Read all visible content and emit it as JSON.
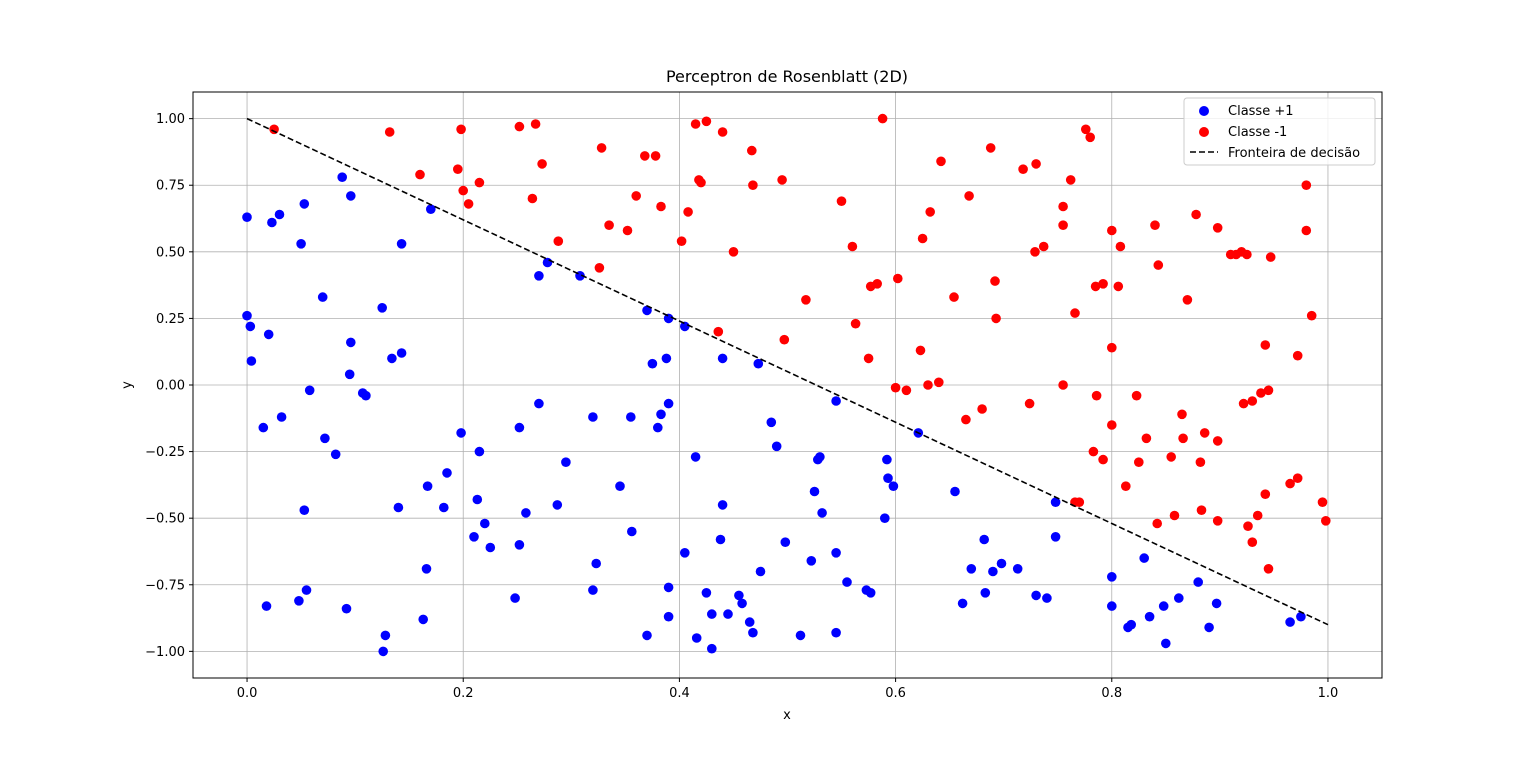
{
  "chart_data": {
    "type": "scatter",
    "title": "Perceptron de Rosenblatt (2D)",
    "xlabel": "x",
    "ylabel": "y",
    "xlim": [
      -0.05,
      1.05
    ],
    "ylim": [
      -1.1,
      1.1
    ],
    "xticks": [
      0.0,
      0.2,
      0.4,
      0.6,
      0.8,
      1.0
    ],
    "xtick_labels": [
      "0.0",
      "0.2",
      "0.4",
      "0.6",
      "0.8",
      "1.0"
    ],
    "yticks": [
      -1.0,
      -0.75,
      -0.5,
      -0.25,
      0.0,
      0.25,
      0.5,
      0.75,
      1.0
    ],
    "ytick_labels": [
      "−1.00",
      "−0.75",
      "−0.50",
      "−0.25",
      "0.00",
      "0.25",
      "0.50",
      "0.75",
      "1.00"
    ],
    "grid": true,
    "legend_position": "top-right",
    "series": [
      {
        "name": "Classe +1",
        "color": "#0000ff",
        "points": [
          [
            0.0,
            0.63
          ],
          [
            0.0,
            0.26
          ],
          [
            0.003,
            0.22
          ],
          [
            0.004,
            0.09
          ],
          [
            0.015,
            -0.16
          ],
          [
            0.018,
            -0.83
          ],
          [
            0.02,
            0.19
          ],
          [
            0.023,
            0.61
          ],
          [
            0.03,
            0.64
          ],
          [
            0.032,
            -0.12
          ],
          [
            0.048,
            -0.81
          ],
          [
            0.05,
            0.53
          ],
          [
            0.053,
            0.68
          ],
          [
            0.053,
            -0.47
          ],
          [
            0.055,
            -0.77
          ],
          [
            0.058,
            -0.02
          ],
          [
            0.07,
            0.33
          ],
          [
            0.072,
            -0.2
          ],
          [
            0.082,
            -0.26
          ],
          [
            0.088,
            0.78
          ],
          [
            0.092,
            -0.84
          ],
          [
            0.095,
            0.04
          ],
          [
            0.096,
            0.71
          ],
          [
            0.096,
            0.16
          ],
          [
            0.107,
            -0.03
          ],
          [
            0.11,
            -0.04
          ],
          [
            0.125,
            0.29
          ],
          [
            0.126,
            -1.0
          ],
          [
            0.128,
            -0.94
          ],
          [
            0.134,
            0.1
          ],
          [
            0.14,
            -0.46
          ],
          [
            0.143,
            0.12
          ],
          [
            0.143,
            0.53
          ],
          [
            0.163,
            -0.88
          ],
          [
            0.166,
            -0.69
          ],
          [
            0.167,
            -0.38
          ],
          [
            0.17,
            0.66
          ],
          [
            0.182,
            -0.46
          ],
          [
            0.185,
            -0.33
          ],
          [
            0.198,
            -0.18
          ],
          [
            0.21,
            -0.57
          ],
          [
            0.213,
            -0.43
          ],
          [
            0.215,
            -0.25
          ],
          [
            0.22,
            -0.52
          ],
          [
            0.225,
            -0.61
          ],
          [
            0.248,
            -0.8
          ],
          [
            0.252,
            -0.6
          ],
          [
            0.252,
            -0.16
          ],
          [
            0.258,
            -0.48
          ],
          [
            0.27,
            0.41
          ],
          [
            0.27,
            -0.07
          ],
          [
            0.278,
            0.46
          ],
          [
            0.287,
            -0.45
          ],
          [
            0.295,
            -0.29
          ],
          [
            0.308,
            0.41
          ],
          [
            0.32,
            -0.77
          ],
          [
            0.32,
            -0.12
          ],
          [
            0.323,
            -0.67
          ],
          [
            0.345,
            -0.38
          ],
          [
            0.355,
            -0.12
          ],
          [
            0.356,
            -0.55
          ],
          [
            0.37,
            0.28
          ],
          [
            0.37,
            -0.94
          ],
          [
            0.375,
            0.08
          ],
          [
            0.38,
            -0.16
          ],
          [
            0.383,
            -0.11
          ],
          [
            0.388,
            0.1
          ],
          [
            0.39,
            0.25
          ],
          [
            0.39,
            -0.07
          ],
          [
            0.39,
            -0.87
          ],
          [
            0.39,
            -0.76
          ],
          [
            0.405,
            0.22
          ],
          [
            0.405,
            -0.63
          ],
          [
            0.415,
            -0.27
          ],
          [
            0.416,
            -0.95
          ],
          [
            0.425,
            -0.78
          ],
          [
            0.43,
            -0.86
          ],
          [
            0.43,
            -0.99
          ],
          [
            0.438,
            -0.58
          ],
          [
            0.44,
            0.1
          ],
          [
            0.44,
            -0.45
          ],
          [
            0.445,
            -0.86
          ],
          [
            0.455,
            -0.79
          ],
          [
            0.458,
            -0.82
          ],
          [
            0.465,
            -0.89
          ],
          [
            0.468,
            -0.93
          ],
          [
            0.473,
            0.08
          ],
          [
            0.475,
            -0.7
          ],
          [
            0.485,
            -0.14
          ],
          [
            0.49,
            -0.23
          ],
          [
            0.498,
            -0.59
          ],
          [
            0.512,
            -0.94
          ],
          [
            0.522,
            -0.66
          ],
          [
            0.525,
            -0.4
          ],
          [
            0.528,
            -0.28
          ],
          [
            0.53,
            -0.27
          ],
          [
            0.532,
            -0.48
          ],
          [
            0.545,
            -0.06
          ],
          [
            0.545,
            -0.63
          ],
          [
            0.545,
            -0.93
          ],
          [
            0.555,
            -0.74
          ],
          [
            0.573,
            -0.77
          ],
          [
            0.577,
            -0.78
          ],
          [
            0.59,
            -0.5
          ],
          [
            0.592,
            -0.28
          ],
          [
            0.593,
            -0.35
          ],
          [
            0.598,
            -0.38
          ],
          [
            0.621,
            -0.18
          ],
          [
            0.655,
            -0.4
          ],
          [
            0.662,
            -0.82
          ],
          [
            0.67,
            -0.69
          ],
          [
            0.682,
            -0.58
          ],
          [
            0.683,
            -0.78
          ],
          [
            0.69,
            -0.7
          ],
          [
            0.698,
            -0.67
          ],
          [
            0.713,
            -0.69
          ],
          [
            0.73,
            -0.79
          ],
          [
            0.74,
            -0.8
          ],
          [
            0.748,
            -0.44
          ],
          [
            0.748,
            -0.57
          ],
          [
            0.8,
            -0.72
          ],
          [
            0.8,
            -0.83
          ],
          [
            0.815,
            -0.91
          ],
          [
            0.818,
            -0.9
          ],
          [
            0.83,
            -0.65
          ],
          [
            0.835,
            -0.87
          ],
          [
            0.848,
            -0.83
          ],
          [
            0.85,
            -0.97
          ],
          [
            0.862,
            -0.8
          ],
          [
            0.88,
            -0.74
          ],
          [
            0.89,
            -0.91
          ],
          [
            0.897,
            -0.82
          ],
          [
            0.965,
            -0.89
          ],
          [
            0.975,
            -0.87
          ]
        ]
      },
      {
        "name": "Classe -1",
        "color": "#ff0000",
        "points": [
          [
            0.025,
            0.96
          ],
          [
            0.132,
            0.95
          ],
          [
            0.16,
            0.79
          ],
          [
            0.195,
            0.81
          ],
          [
            0.198,
            0.96
          ],
          [
            0.2,
            0.73
          ],
          [
            0.205,
            0.68
          ],
          [
            0.215,
            0.76
          ],
          [
            0.252,
            0.97
          ],
          [
            0.264,
            0.7
          ],
          [
            0.267,
            0.98
          ],
          [
            0.273,
            0.83
          ],
          [
            0.288,
            0.54
          ],
          [
            0.326,
            0.44
          ],
          [
            0.328,
            0.89
          ],
          [
            0.335,
            0.6
          ],
          [
            0.352,
            0.58
          ],
          [
            0.36,
            0.71
          ],
          [
            0.368,
            0.86
          ],
          [
            0.378,
            0.86
          ],
          [
            0.383,
            0.67
          ],
          [
            0.402,
            0.54
          ],
          [
            0.408,
            0.65
          ],
          [
            0.415,
            0.98
          ],
          [
            0.418,
            0.77
          ],
          [
            0.42,
            0.76
          ],
          [
            0.425,
            0.99
          ],
          [
            0.436,
            0.2
          ],
          [
            0.44,
            0.95
          ],
          [
            0.45,
            0.5
          ],
          [
            0.467,
            0.88
          ],
          [
            0.468,
            0.75
          ],
          [
            0.495,
            0.77
          ],
          [
            0.497,
            0.17
          ],
          [
            0.517,
            0.32
          ],
          [
            0.55,
            0.69
          ],
          [
            0.56,
            0.52
          ],
          [
            0.563,
            0.23
          ],
          [
            0.575,
            0.1
          ],
          [
            0.577,
            0.37
          ],
          [
            0.583,
            0.38
          ],
          [
            0.588,
            1.0
          ],
          [
            0.6,
            -0.01
          ],
          [
            0.602,
            0.4
          ],
          [
            0.61,
            -0.02
          ],
          [
            0.623,
            0.13
          ],
          [
            0.625,
            0.55
          ],
          [
            0.63,
            0.0
          ],
          [
            0.632,
            0.65
          ],
          [
            0.64,
            0.01
          ],
          [
            0.642,
            0.84
          ],
          [
            0.654,
            0.33
          ],
          [
            0.665,
            -0.13
          ],
          [
            0.668,
            0.71
          ],
          [
            0.68,
            -0.09
          ],
          [
            0.688,
            0.89
          ],
          [
            0.692,
            0.39
          ],
          [
            0.693,
            0.25
          ],
          [
            0.718,
            0.81
          ],
          [
            0.724,
            -0.07
          ],
          [
            0.729,
            0.5
          ],
          [
            0.73,
            0.83
          ],
          [
            0.737,
            0.52
          ],
          [
            0.755,
            0.6
          ],
          [
            0.755,
            0.67
          ],
          [
            0.755,
            0.0
          ],
          [
            0.762,
            0.77
          ],
          [
            0.766,
            0.27
          ],
          [
            0.766,
            -0.44
          ],
          [
            0.77,
            -0.44
          ],
          [
            0.776,
            0.96
          ],
          [
            0.78,
            0.93
          ],
          [
            0.783,
            -0.25
          ],
          [
            0.785,
            0.37
          ],
          [
            0.786,
            -0.04
          ],
          [
            0.792,
            0.38
          ],
          [
            0.792,
            -0.28
          ],
          [
            0.8,
            0.58
          ],
          [
            0.8,
            0.14
          ],
          [
            0.8,
            -0.15
          ],
          [
            0.806,
            0.37
          ],
          [
            0.808,
            0.52
          ],
          [
            0.813,
            -0.38
          ],
          [
            0.823,
            -0.04
          ],
          [
            0.825,
            -0.29
          ],
          [
            0.832,
            -0.2
          ],
          [
            0.84,
            0.6
          ],
          [
            0.842,
            -0.52
          ],
          [
            0.843,
            0.45
          ],
          [
            0.855,
            -0.27
          ],
          [
            0.858,
            -0.49
          ],
          [
            0.865,
            -0.11
          ],
          [
            0.866,
            -0.2
          ],
          [
            0.87,
            0.32
          ],
          [
            0.878,
            0.64
          ],
          [
            0.882,
            -0.29
          ],
          [
            0.883,
            -0.47
          ],
          [
            0.886,
            -0.18
          ],
          [
            0.898,
            -0.21
          ],
          [
            0.898,
            0.59
          ],
          [
            0.898,
            -0.51
          ],
          [
            0.91,
            0.49
          ],
          [
            0.915,
            0.49
          ],
          [
            0.92,
            0.5
          ],
          [
            0.922,
            -0.07
          ],
          [
            0.925,
            0.49
          ],
          [
            0.926,
            -0.53
          ],
          [
            0.93,
            -0.06
          ],
          [
            0.93,
            -0.59
          ],
          [
            0.935,
            -0.49
          ],
          [
            0.938,
            -0.03
          ],
          [
            0.942,
            0.15
          ],
          [
            0.942,
            -0.41
          ],
          [
            0.945,
            -0.69
          ],
          [
            0.945,
            -0.02
          ],
          [
            0.947,
            0.48
          ],
          [
            0.965,
            -0.37
          ],
          [
            0.972,
            -0.35
          ],
          [
            0.972,
            0.11
          ],
          [
            0.98,
            0.75
          ],
          [
            0.98,
            0.58
          ],
          [
            0.985,
            0.26
          ],
          [
            0.995,
            -0.44
          ],
          [
            0.998,
            -0.51
          ]
        ]
      },
      {
        "name": "Fronteira de decisão",
        "color": "#000000",
        "style": "dashed-line",
        "points": [
          [
            0.0,
            1.0
          ],
          [
            1.0,
            -0.9
          ]
        ]
      }
    ]
  }
}
